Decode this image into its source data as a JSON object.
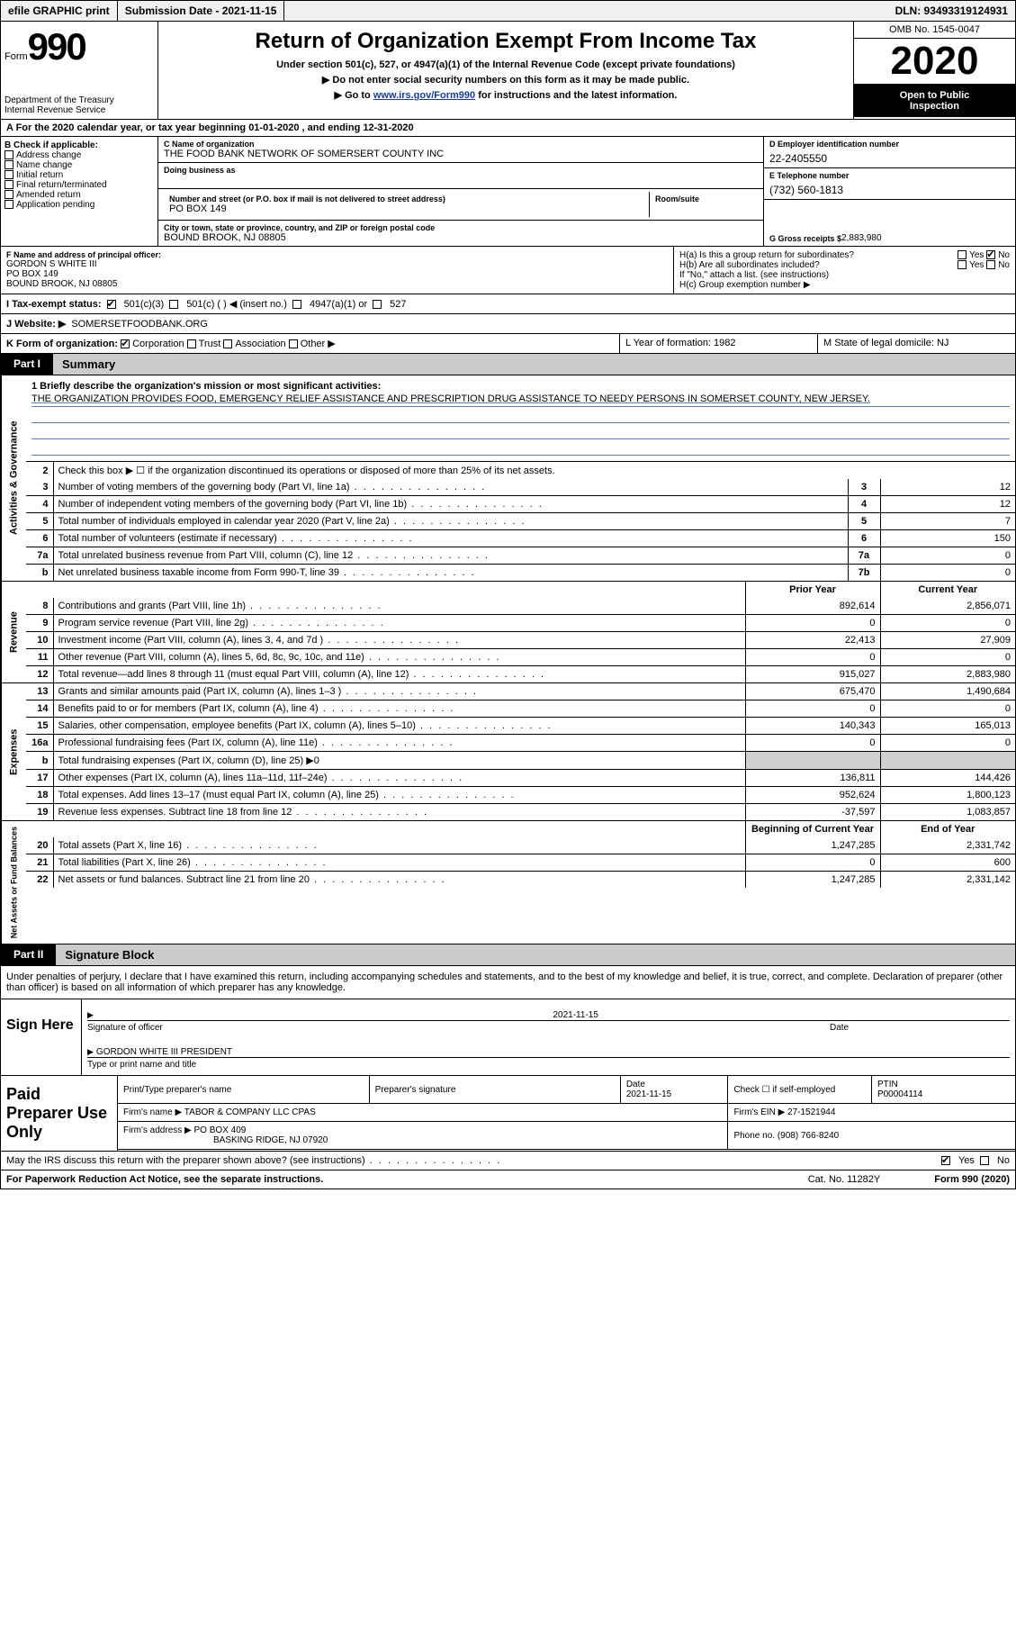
{
  "topbar": {
    "efile": "efile GRAPHIC print",
    "submission": "Submission Date - 2021-11-15",
    "dln": "DLN: 93493319124931"
  },
  "header": {
    "form_word": "Form",
    "form_num": "990",
    "dept1": "Department of the Treasury",
    "dept2": "Internal Revenue Service",
    "title": "Return of Organization Exempt From Income Tax",
    "sub1": "Under section 501(c), 527, or 4947(a)(1) of the Internal Revenue Code (except private foundations)",
    "sub2": "▶ Do not enter social security numbers on this form as it may be made public.",
    "sub3_pre": "▶ Go to ",
    "sub3_link": "www.irs.gov/Form990",
    "sub3_post": " for instructions and the latest information.",
    "omb": "OMB No. 1545-0047",
    "year": "2020",
    "open1": "Open to Public",
    "open2": "Inspection"
  },
  "period": "A For the 2020 calendar year, or tax year beginning 01-01-2020     , and ending 12-31-2020",
  "boxB": {
    "label": "B Check if applicable:",
    "items": [
      "Address change",
      "Name change",
      "Initial return",
      "Final return/terminated",
      "Amended return",
      "Application pending"
    ]
  },
  "boxC": {
    "name_label": "C Name of organization",
    "name": "THE FOOD BANK NETWORK OF SOMERSERT COUNTY INC",
    "dba_label": "Doing business as",
    "addr_label": "Number and street (or P.O. box if mail is not delivered to street address)",
    "addr": "PO BOX 149",
    "room_label": "Room/suite",
    "city_label": "City or town, state or province, country, and ZIP or foreign postal code",
    "city": "BOUND BROOK, NJ  08805"
  },
  "boxD": {
    "label": "D Employer identification number",
    "val": "22-2405550"
  },
  "boxE": {
    "label": "E Telephone number",
    "val": "(732) 560-1813"
  },
  "boxG": {
    "label": "G Gross receipts $",
    "val": "2,883,980"
  },
  "boxF": {
    "label": "F Name and address of principal officer:",
    "l1": "GORDON S WHITE III",
    "l2": "PO BOX 149",
    "l3": "BOUND BROOK, NJ  08805"
  },
  "boxH": {
    "a": "H(a)  Is this a group return for subordinates?",
    "b": "H(b)  Are all subordinates included?",
    "b2": "If \"No,\" attach a list. (see instructions)",
    "c": "H(c)  Group exemption number ▶",
    "yes": "Yes",
    "no": "No"
  },
  "rowI": {
    "label": "I    Tax-exempt status:",
    "opts": [
      "501(c)(3)",
      "501(c) (   ) ◀ (insert no.)",
      "4947(a)(1) or",
      "527"
    ]
  },
  "rowJ": {
    "label": "J   Website: ▶",
    "val": "SOMERSETFOODBANK.ORG"
  },
  "rowK": {
    "label": "K Form of organization:",
    "opts": [
      "Corporation",
      "Trust",
      "Association",
      "Other ▶"
    ]
  },
  "rowL": "L Year of formation: 1982",
  "rowM": "M State of legal domicile: NJ",
  "part1": {
    "label": "Part I",
    "title": "Summary"
  },
  "vlabels": {
    "gov": "Activities & Governance",
    "rev": "Revenue",
    "exp": "Expenses",
    "net": "Net Assets or Fund Balances"
  },
  "mission": {
    "q": "1   Briefly describe the organization's mission or most significant activities:",
    "text": "THE ORGANIZATION PROVIDES FOOD, EMERGENCY RELIEF ASSISTANCE AND PRESCRIPTION DRUG ASSISTANCE TO NEEDY PERSONS IN SOMERSET COUNTY, NEW JERSEY."
  },
  "line2": "Check this box ▶ ☐  if the organization discontinued its operations or disposed of more than 25% of its net assets.",
  "gov_lines": [
    {
      "n": "3",
      "d": "Number of voting members of the governing body (Part VI, line 1a)",
      "ref": "3",
      "v": "12"
    },
    {
      "n": "4",
      "d": "Number of independent voting members of the governing body (Part VI, line 1b)",
      "ref": "4",
      "v": "12"
    },
    {
      "n": "5",
      "d": "Total number of individuals employed in calendar year 2020 (Part V, line 2a)",
      "ref": "5",
      "v": "7"
    },
    {
      "n": "6",
      "d": "Total number of volunteers (estimate if necessary)",
      "ref": "6",
      "v": "150"
    },
    {
      "n": "7a",
      "d": "Total unrelated business revenue from Part VIII, column (C), line 12",
      "ref": "7a",
      "v": "0"
    },
    {
      "n": "b",
      "d": "Net unrelated business taxable income from Form 990-T, line 39",
      "ref": "7b",
      "v": "0"
    }
  ],
  "col_hdr": {
    "prior": "Prior Year",
    "current": "Current Year",
    "boy": "Beginning of Current Year",
    "eoy": "End of Year"
  },
  "rev_lines": [
    {
      "n": "8",
      "d": "Contributions and grants (Part VIII, line 1h)",
      "p": "892,614",
      "c": "2,856,071"
    },
    {
      "n": "9",
      "d": "Program service revenue (Part VIII, line 2g)",
      "p": "0",
      "c": "0"
    },
    {
      "n": "10",
      "d": "Investment income (Part VIII, column (A), lines 3, 4, and 7d )",
      "p": "22,413",
      "c": "27,909"
    },
    {
      "n": "11",
      "d": "Other revenue (Part VIII, column (A), lines 5, 6d, 8c, 9c, 10c, and 11e)",
      "p": "0",
      "c": "0"
    },
    {
      "n": "12",
      "d": "Total revenue—add lines 8 through 11 (must equal Part VIII, column (A), line 12)",
      "p": "915,027",
      "c": "2,883,980"
    }
  ],
  "exp_lines": [
    {
      "n": "13",
      "d": "Grants and similar amounts paid (Part IX, column (A), lines 1–3 )",
      "p": "675,470",
      "c": "1,490,684"
    },
    {
      "n": "14",
      "d": "Benefits paid to or for members (Part IX, column (A), line 4)",
      "p": "0",
      "c": "0"
    },
    {
      "n": "15",
      "d": "Salaries, other compensation, employee benefits (Part IX, column (A), lines 5–10)",
      "p": "140,343",
      "c": "165,013"
    },
    {
      "n": "16a",
      "d": "Professional fundraising fees (Part IX, column (A), line 11e)",
      "p": "0",
      "c": "0"
    },
    {
      "n": "b",
      "d": "Total fundraising expenses (Part IX, column (D), line 25) ▶0",
      "grey": true
    },
    {
      "n": "17",
      "d": "Other expenses (Part IX, column (A), lines 11a–11d, 11f–24e)",
      "p": "136,811",
      "c": "144,426"
    },
    {
      "n": "18",
      "d": "Total expenses. Add lines 13–17 (must equal Part IX, column (A), line 25)",
      "p": "952,624",
      "c": "1,800,123"
    },
    {
      "n": "19",
      "d": "Revenue less expenses. Subtract line 18 from line 12",
      "p": "-37,597",
      "c": "1,083,857"
    }
  ],
  "net_lines": [
    {
      "n": "20",
      "d": "Total assets (Part X, line 16)",
      "p": "1,247,285",
      "c": "2,331,742"
    },
    {
      "n": "21",
      "d": "Total liabilities (Part X, line 26)",
      "p": "0",
      "c": "600"
    },
    {
      "n": "22",
      "d": "Net assets or fund balances. Subtract line 21 from line 20",
      "p": "1,247,285",
      "c": "2,331,142"
    }
  ],
  "part2": {
    "label": "Part II",
    "title": "Signature Block",
    "text": "Under penalties of perjury, I declare that I have examined this return, including accompanying schedules and statements, and to the best of my knowledge and belief, it is true, correct, and complete. Declaration of preparer (other than officer) is based on all information of which preparer has any knowledge."
  },
  "sign": {
    "here": "Sign Here",
    "sig_label": "Signature of officer",
    "date_label": "Date",
    "date": "2021-11-15",
    "name": "GORDON WHITE III PRESIDENT",
    "name_label": "Type or print name and title"
  },
  "prep": {
    "title": "Paid Preparer Use Only",
    "h": [
      "Print/Type preparer's name",
      "Preparer's signature",
      "Date",
      "",
      "PTIN"
    ],
    "date": "2021-11-15",
    "check": "Check ☐ if self-employed",
    "ptin": "P00004114",
    "firm_label": "Firm's name   ▶",
    "firm": "TABOR & COMPANY LLC CPAS",
    "ein_label": "Firm's EIN ▶",
    "ein": "27-1521944",
    "addr_label": "Firm's address ▶",
    "addr1": "PO BOX 409",
    "addr2": "BASKING RIDGE, NJ  07920",
    "phone_label": "Phone no.",
    "phone": "(908) 766-8240"
  },
  "discuss": {
    "q": "May the IRS discuss this return with the preparer shown above? (see instructions)",
    "yes": "Yes",
    "no": "No"
  },
  "footer": {
    "l": "For Paperwork Reduction Act Notice, see the separate instructions.",
    "c": "Cat. No. 11282Y",
    "r": "Form 990 (2020)"
  }
}
